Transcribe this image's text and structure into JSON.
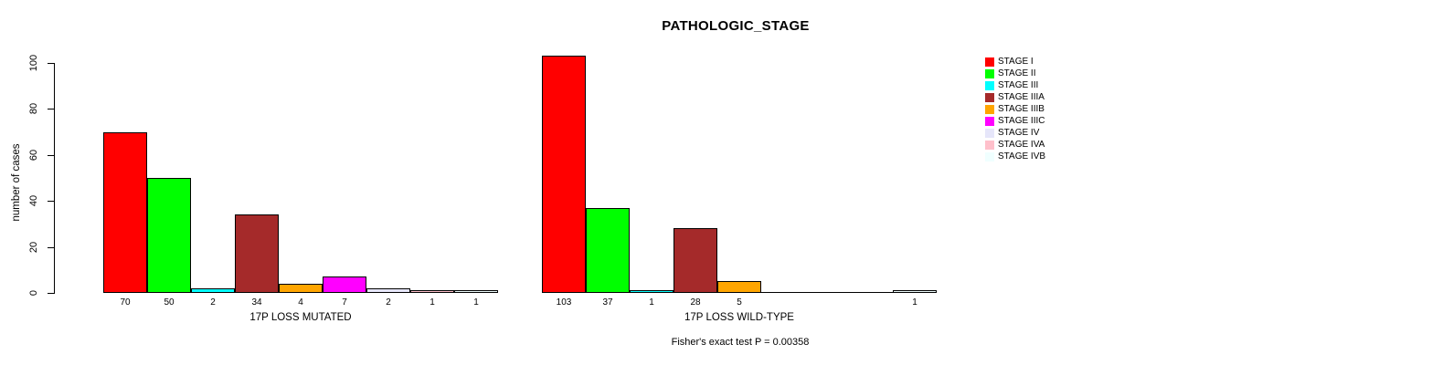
{
  "chart_data": {
    "type": "bar",
    "title": "PATHOLOGIC_STAGE",
    "ylabel": "number of cases",
    "ylim": [
      0,
      100
    ],
    "yticks": [
      0,
      20,
      40,
      60,
      80,
      100
    ],
    "grid": false,
    "legend_position": "right",
    "bar_value_labels_shown": true,
    "categories": [
      "STAGE I",
      "STAGE II",
      "STAGE III",
      "STAGE IIIA",
      "STAGE IIIB",
      "STAGE IIIC",
      "STAGE IV",
      "STAGE IVA",
      "STAGE IVB"
    ],
    "colors": [
      "#FF0000",
      "#00FF00",
      "#00FFFF",
      "#A52A2A",
      "#FFA500",
      "#FF00FF",
      "#E6E6FA",
      "#FFC0CB",
      "#F0FFFF"
    ],
    "groups": [
      {
        "label": "17P LOSS MUTATED",
        "values": [
          70,
          50,
          2,
          34,
          4,
          7,
          2,
          1,
          1
        ]
      },
      {
        "label": "17P LOSS WILD-TYPE",
        "values": [
          103,
          37,
          1,
          28,
          5,
          0,
          0,
          0,
          1
        ]
      }
    ],
    "annotation": "Fisher's exact test P = 0.00358"
  }
}
